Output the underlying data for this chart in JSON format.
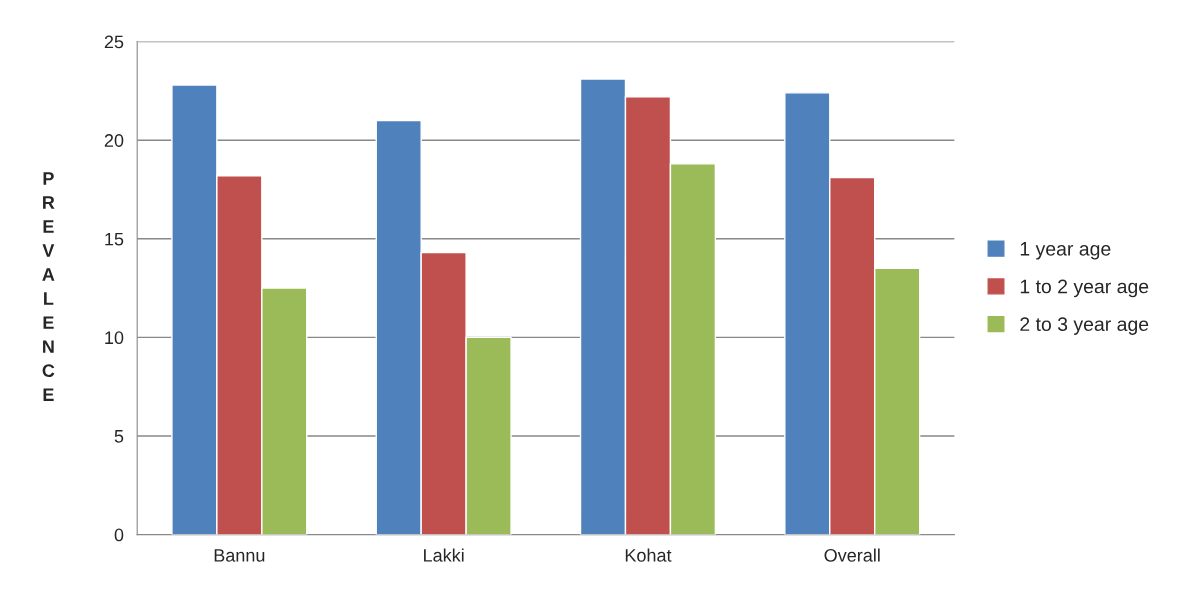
{
  "chart_data": {
    "type": "bar",
    "categories": [
      "Bannu",
      "Lakki",
      "Kohat",
      "Overall"
    ],
    "ylabel": "PREVALENCE",
    "series": [
      {
        "name": "1 year age",
        "color": "#4f81bd",
        "values": [
          22.8,
          21.0,
          23.1,
          22.4
        ]
      },
      {
        "name": "1 to 2 year age",
        "color": "#c0504d",
        "values": [
          18.2,
          14.3,
          22.2,
          18.1
        ]
      },
      {
        "name": "2 to 3 year age",
        "color": "#9bbb59",
        "values": [
          12.5,
          10.0,
          18.8,
          13.5
        ]
      }
    ],
    "ylim": [
      0,
      25
    ],
    "yticks": [
      0,
      5,
      10,
      15,
      20,
      25
    ],
    "grid": "y",
    "legend": "right"
  }
}
